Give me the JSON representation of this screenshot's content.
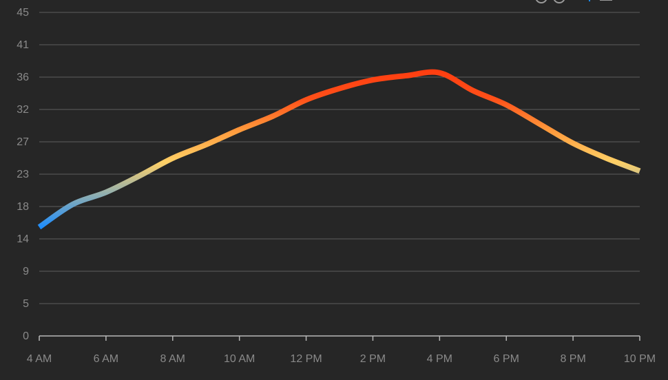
{
  "chart_data": {
    "type": "line",
    "categories": [
      "4 AM",
      "5 AM",
      "6 AM",
      "7 AM",
      "8 AM",
      "9 AM",
      "10 AM",
      "11 AM",
      "12 PM",
      "1 PM",
      "2 PM",
      "3 PM",
      "4 PM",
      "5 PM",
      "6 PM",
      "7 PM",
      "8 PM",
      "9 PM",
      "10 PM"
    ],
    "x_tick_labels": [
      "4 AM",
      "6 AM",
      "8 AM",
      "10 AM",
      "12 PM",
      "2 PM",
      "4 PM",
      "6 PM",
      "8 PM",
      "10 PM"
    ],
    "y_tick_labels": [
      "0",
      "5",
      "9",
      "14",
      "18",
      "23",
      "27",
      "32",
      "36",
      "41",
      "45"
    ],
    "series": [
      {
        "values": [
          15.3,
          18.5,
          20.2,
          22.5,
          25.0,
          26.9,
          29.0,
          30.9,
          33.2,
          34.8,
          36.0,
          36.6,
          37.0,
          34.5,
          32.5,
          29.8,
          27.1,
          25.0,
          23.2
        ]
      }
    ],
    "ylim": [
      0,
      45.5
    ],
    "grid": true,
    "legend": "none",
    "line_gradient_colors": [
      "#1a8cff",
      "#ffd066",
      "#ff9a3c",
      "#ff5019",
      "#ff3d10"
    ],
    "background_color": "#262626"
  }
}
